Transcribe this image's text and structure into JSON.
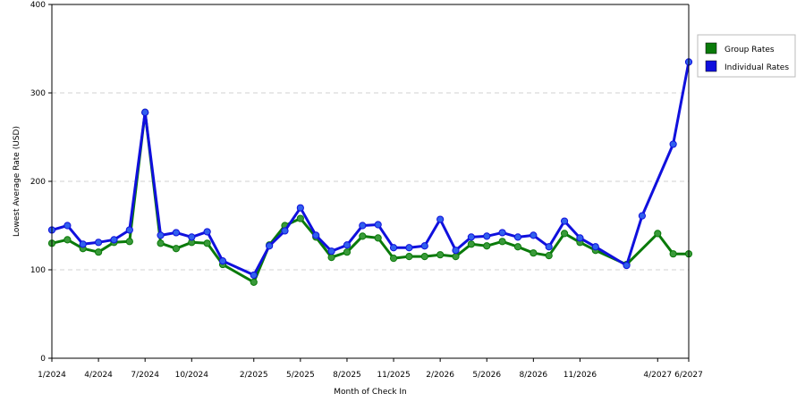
{
  "chart_data": {
    "type": "line",
    "title": "",
    "xlabel": "Month of Check In",
    "ylabel": "Lowest Average Rate (USD)",
    "ylim": [
      0,
      400
    ],
    "yticks": [
      0,
      100,
      200,
      300,
      400
    ],
    "grid": true,
    "legend_position": "top-right",
    "x_range": [
      "2024-01",
      "2027-06"
    ],
    "xticks": [
      {
        "date": "2024-01",
        "label": "1/2024"
      },
      {
        "date": "2024-04",
        "label": "4/2024"
      },
      {
        "date": "2024-07",
        "label": "7/2024"
      },
      {
        "date": "2024-10",
        "label": "10/2024"
      },
      {
        "date": "2025-02",
        "label": "2/2025"
      },
      {
        "date": "2025-05",
        "label": "5/2025"
      },
      {
        "date": "2025-08",
        "label": "8/2025"
      },
      {
        "date": "2025-11",
        "label": "11/2025"
      },
      {
        "date": "2026-02",
        "label": "2/2026"
      },
      {
        "date": "2026-05",
        "label": "5/2026"
      },
      {
        "date": "2026-08",
        "label": "8/2026"
      },
      {
        "date": "2026-11",
        "label": "11/2026"
      },
      {
        "date": "2027-04",
        "label": "4/2027"
      },
      {
        "date": "2027-06",
        "label": "6/2027"
      }
    ],
    "series": [
      {
        "name": "Group Rates",
        "color": "#0a7a0a",
        "marker_color": "#3a9a3a",
        "points": [
          {
            "x": "2024-01",
            "y": 130
          },
          {
            "x": "2024-02",
            "y": 134
          },
          {
            "x": "2024-03",
            "y": 124
          },
          {
            "x": "2024-04",
            "y": 120
          },
          {
            "x": "2024-05",
            "y": 131
          },
          {
            "x": "2024-06",
            "y": 132
          },
          {
            "x": "2024-07",
            "y": 278
          },
          {
            "x": "2024-08",
            "y": 130
          },
          {
            "x": "2024-09",
            "y": 124
          },
          {
            "x": "2024-10",
            "y": 131
          },
          {
            "x": "2024-11",
            "y": 130
          },
          {
            "x": "2024-12",
            "y": 106
          },
          {
            "x": "2025-02",
            "y": 86
          },
          {
            "x": "2025-03",
            "y": 128
          },
          {
            "x": "2025-04",
            "y": 150
          },
          {
            "x": "2025-05",
            "y": 158
          },
          {
            "x": "2025-06",
            "y": 137
          },
          {
            "x": "2025-07",
            "y": 114
          },
          {
            "x": "2025-08",
            "y": 120
          },
          {
            "x": "2025-09",
            "y": 138
          },
          {
            "x": "2025-10",
            "y": 136
          },
          {
            "x": "2025-11",
            "y": 113
          },
          {
            "x": "2025-12",
            "y": 115
          },
          {
            "x": "2026-01",
            "y": 115
          },
          {
            "x": "2026-02",
            "y": 117
          },
          {
            "x": "2026-03",
            "y": 115
          },
          {
            "x": "2026-04",
            "y": 129
          },
          {
            "x": "2026-05",
            "y": 127
          },
          {
            "x": "2026-06",
            "y": 132
          },
          {
            "x": "2026-07",
            "y": 126
          },
          {
            "x": "2026-08",
            "y": 119
          },
          {
            "x": "2026-09",
            "y": 116
          },
          {
            "x": "2026-10",
            "y": 141
          },
          {
            "x": "2026-11",
            "y": 131
          },
          {
            "x": "2026-12",
            "y": 122
          },
          {
            "x": "2027-02",
            "y": 106
          },
          {
            "x": "2027-04",
            "y": 141
          },
          {
            "x": "2027-05",
            "y": 118
          },
          {
            "x": "2027-06",
            "y": 118
          }
        ]
      },
      {
        "name": "Individual Rates",
        "color": "#1010dd",
        "marker_color": "#3060ee",
        "points": [
          {
            "x": "2024-01",
            "y": 145
          },
          {
            "x": "2024-02",
            "y": 150
          },
          {
            "x": "2024-03",
            "y": 129
          },
          {
            "x": "2024-04",
            "y": 131
          },
          {
            "x": "2024-05",
            "y": 134
          },
          {
            "x": "2024-06",
            "y": 145
          },
          {
            "x": "2024-07",
            "y": 278
          },
          {
            "x": "2024-08",
            "y": 139
          },
          {
            "x": "2024-09",
            "y": 142
          },
          {
            "x": "2024-10",
            "y": 137
          },
          {
            "x": "2024-11",
            "y": 143
          },
          {
            "x": "2024-12",
            "y": 110
          },
          {
            "x": "2025-02",
            "y": 94
          },
          {
            "x": "2025-03",
            "y": 127
          },
          {
            "x": "2025-04",
            "y": 144
          },
          {
            "x": "2025-05",
            "y": 170
          },
          {
            "x": "2025-06",
            "y": 139
          },
          {
            "x": "2025-07",
            "y": 121
          },
          {
            "x": "2025-08",
            "y": 128
          },
          {
            "x": "2025-09",
            "y": 150
          },
          {
            "x": "2025-10",
            "y": 151
          },
          {
            "x": "2025-11",
            "y": 125
          },
          {
            "x": "2025-12",
            "y": 125
          },
          {
            "x": "2026-01",
            "y": 127
          },
          {
            "x": "2026-02",
            "y": 157
          },
          {
            "x": "2026-03",
            "y": 122
          },
          {
            "x": "2026-04",
            "y": 137
          },
          {
            "x": "2026-05",
            "y": 138
          },
          {
            "x": "2026-06",
            "y": 142
          },
          {
            "x": "2026-07",
            "y": 137
          },
          {
            "x": "2026-08",
            "y": 139
          },
          {
            "x": "2026-09",
            "y": 126
          },
          {
            "x": "2026-10",
            "y": 155
          },
          {
            "x": "2026-11",
            "y": 136
          },
          {
            "x": "2026-12",
            "y": 126
          },
          {
            "x": "2027-02",
            "y": 105
          },
          {
            "x": "2027-03",
            "y": 161
          },
          {
            "x": "2027-05",
            "y": 242
          },
          {
            "x": "2027-06",
            "y": 335
          }
        ]
      }
    ]
  }
}
